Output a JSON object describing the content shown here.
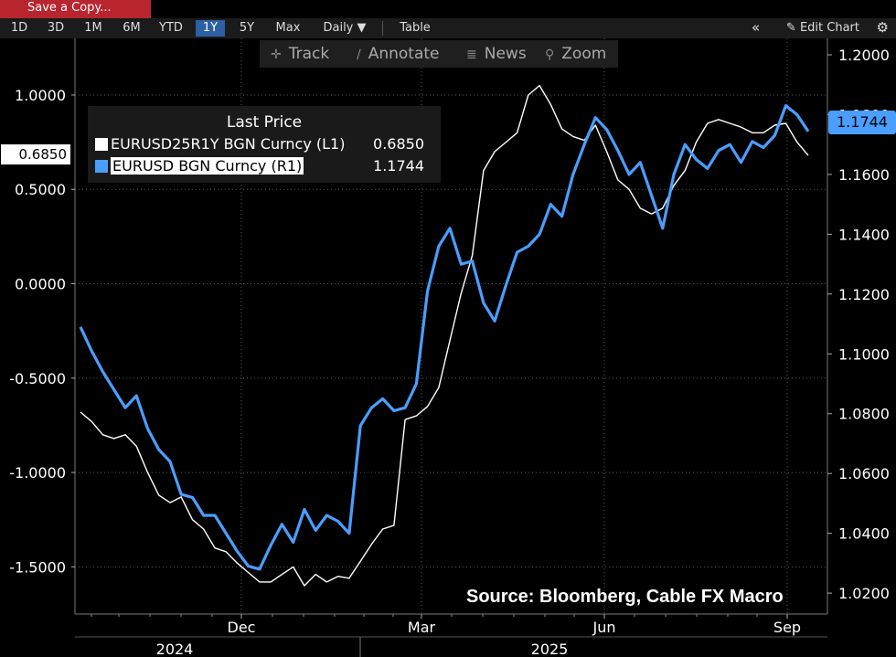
{
  "topbar": {
    "save_label": "Save a Copy..."
  },
  "toolbar": {
    "ranges": [
      "1D",
      "3D",
      "1M",
      "6M",
      "YTD",
      "1Y",
      "5Y",
      "Max"
    ],
    "active_range": "1Y",
    "frequency": "Daily ▼",
    "table_label": "Table",
    "edit_label": "Edit Chart"
  },
  "subtools": {
    "track": "Track",
    "annotate": "Annotate",
    "news": "News",
    "zoom": "Zoom"
  },
  "legend": {
    "title": "Last Price",
    "rows": [
      {
        "label": "EURUSD25R1Y BGN Curncy  (L1)",
        "value": "0.6850",
        "color": "#ffffff"
      },
      {
        "label": "EURUSD BGN Curncy  (R1)",
        "value": "1.1744",
        "color": "#4a9eff"
      }
    ]
  },
  "source": "Source: Bloomberg, Cable FX Macro",
  "last_value_left": "0.6850",
  "last_value_right": "1.1744",
  "chart_data": {
    "type": "line",
    "x_ticks": [
      "Dec",
      "Mar",
      "Jun",
      "Sep"
    ],
    "year_labels": [
      "2024",
      "2025"
    ],
    "left_axis": {
      "ticks": [
        "1.0000",
        "0.5000",
        "0.0000",
        "-0.5000",
        "-1.0000",
        "-1.5000"
      ],
      "ylim": [
        -1.75,
        1.3
      ]
    },
    "right_axis": {
      "ticks": [
        "1.2000",
        "1.1800",
        "1.1600",
        "1.1400",
        "1.1200",
        "1.1000",
        "1.0800",
        "1.0600",
        "1.0400",
        "1.0200"
      ],
      "ylim": [
        1.013,
        1.2055
      ]
    },
    "grid": true,
    "series": [
      {
        "name": "EURUSD25R1Y BGN Curncy",
        "axis": "left",
        "color": "#ffffff",
        "values": [
          -0.68,
          -0.73,
          -0.8,
          -0.82,
          -0.8,
          -0.86,
          -1.0,
          -1.12,
          -1.16,
          -1.13,
          -1.25,
          -1.3,
          -1.4,
          -1.42,
          -1.48,
          -1.53,
          -1.58,
          -1.58,
          -1.54,
          -1.5,
          -1.6,
          -1.54,
          -1.58,
          -1.55,
          -1.56,
          -1.47,
          -1.38,
          -1.3,
          -1.28,
          -0.72,
          -0.7,
          -0.65,
          -0.55,
          -0.3,
          -0.05,
          0.15,
          0.6,
          0.7,
          0.75,
          0.8,
          1.0,
          1.05,
          0.95,
          0.82,
          0.78,
          0.76,
          0.84,
          0.7,
          0.55,
          0.5,
          0.4,
          0.37,
          0.4,
          0.52,
          0.6,
          0.75,
          0.85,
          0.87,
          0.85,
          0.83,
          0.8,
          0.8,
          0.84,
          0.85,
          0.75,
          0.68
        ]
      },
      {
        "name": "EURUSD BGN Curncy",
        "axis": "right",
        "color": "#4a9eff",
        "values": [
          1.109,
          1.101,
          1.094,
          1.088,
          1.082,
          1.086,
          1.075,
          1.068,
          1.064,
          1.053,
          1.052,
          1.046,
          1.046,
          1.04,
          1.034,
          1.029,
          1.028,
          1.036,
          1.043,
          1.037,
          1.048,
          1.041,
          1.046,
          1.044,
          1.04,
          1.076,
          1.082,
          1.085,
          1.081,
          1.082,
          1.09,
          1.121,
          1.136,
          1.142,
          1.13,
          1.131,
          1.117,
          1.111,
          1.123,
          1.134,
          1.136,
          1.14,
          1.15,
          1.146,
          1.16,
          1.17,
          1.179,
          1.175,
          1.168,
          1.16,
          1.164,
          1.153,
          1.142,
          1.16,
          1.17,
          1.165,
          1.162,
          1.168,
          1.17,
          1.164,
          1.171,
          1.169,
          1.173,
          1.183,
          1.18,
          1.1744
        ]
      }
    ]
  }
}
